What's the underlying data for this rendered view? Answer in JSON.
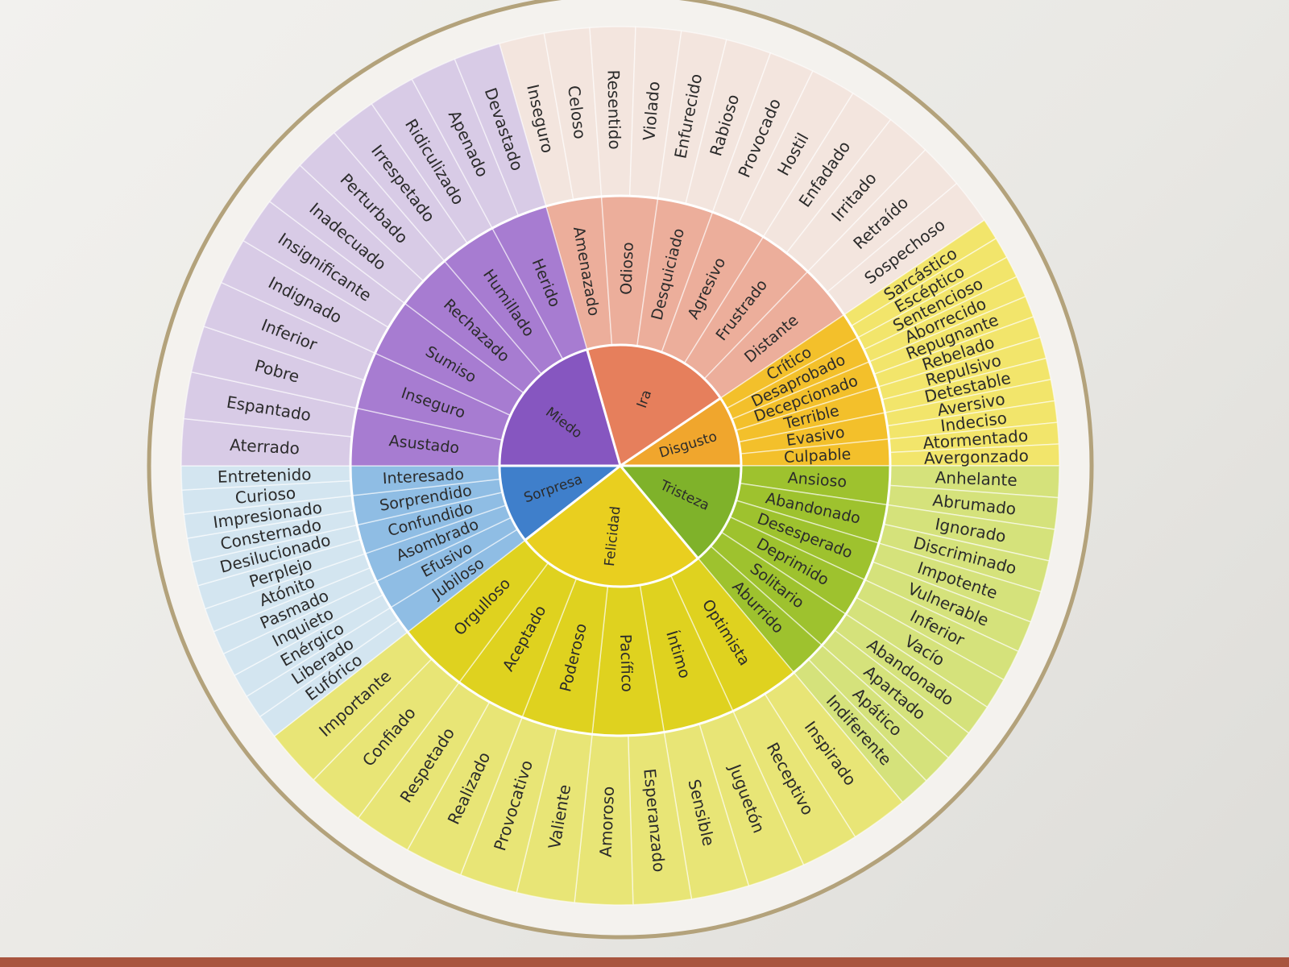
{
  "colors": {
    "background": "#ecebe7",
    "ring": "#b3a27b",
    "miedo": "#8656c0",
    "ira": "#e67f5c",
    "disgusto": "#f0a62d",
    "tristeza": "#7fb22a",
    "felicidad": "#e9cf1f",
    "sorpresa": "#3f7fcb"
  },
  "wheel": [
    {
      "key": "ira",
      "label": "Ira",
      "span": [
        -106,
        -34
      ],
      "colors": {
        "inner": "#e67f5c",
        "mid": "#ecae9b",
        "outer": "#f3e5de"
      },
      "mid": [
        "Amenazado",
        "Odioso",
        "Desquiciado",
        "Agresivo",
        "Frustrado",
        "Distante"
      ],
      "outer": [
        "Inseguro",
        "Celoso",
        "Resentido",
        "Violado",
        "Enfurecido",
        "Rabioso",
        "Provocado",
        "Hostil",
        "Enfadado",
        "Irritado",
        "Retraído",
        "Sospechoso"
      ]
    },
    {
      "key": "disgusto",
      "label": "Disgusto",
      "span": [
        -34,
        0
      ],
      "colors": {
        "inner": "#f0a62d",
        "mid": "#f3c02b",
        "outer": "#f2e56b"
      },
      "mid": [
        "Crítico",
        "Desaprobado",
        "Decepcionado",
        "Terrible",
        "Evasivo",
        "Culpable"
      ],
      "outer": [
        "Sarcástico",
        "Escéptico",
        "Sentencioso",
        "Aborrecido",
        "Repugnante",
        "Rebelado",
        "Repulsivo",
        "Detestable",
        "Aversivo",
        "Indeciso",
        "Atormentado",
        "Avergonzado"
      ]
    },
    {
      "key": "tristeza",
      "label": "Tristeza",
      "span": [
        0,
        50
      ],
      "colors": {
        "inner": "#7fb22a",
        "mid": "#9ec22e",
        "outer": "#d5e27b"
      },
      "mid": [
        "Ansioso",
        "Abandonado",
        "Desesperado",
        "Deprimido",
        "Solitario",
        "Aburrido"
      ],
      "outer": [
        "Anhelante",
        "Abrumado",
        "Ignorado",
        "Discriminado",
        "Impotente",
        "Vulnerable",
        "Inferior",
        "Vacío",
        "Abandonado",
        "Apartado",
        "Apático",
        "Indiferente"
      ]
    },
    {
      "key": "felicidad",
      "label": "Felicidad",
      "span": [
        50,
        142
      ],
      "colors": {
        "inner": "#e9cf1f",
        "mid": "#dfd21f",
        "outer": "#e8e576"
      },
      "mid": [
        "Optimista",
        "Íntimo",
        "Pacífico",
        "Poderoso",
        "Aceptado",
        "Orgulloso"
      ],
      "outer": [
        "Inspirado",
        "Receptivo",
        "Juguetón",
        "Sensible",
        "Esperanzado",
        "Amoroso",
        "Valiente",
        "Provocativo",
        "Realizado",
        "Respetado",
        "Confiado",
        "Importante"
      ]
    },
    {
      "key": "sorpresa",
      "label": "Sorpresa",
      "span": [
        142,
        180
      ],
      "colors": {
        "inner": "#3f7fcb",
        "mid": "#8fbde4",
        "outer": "#d3e5f0"
      },
      "mid": [
        "Jubiloso",
        "Efusivo",
        "Asombrado",
        "Confundido",
        "Sorprendido",
        "Interesado"
      ],
      "outer": [
        "Eufórico",
        "Liberado",
        "Enérgico",
        "Inquieto",
        "Pasmado",
        "Atónito",
        "Perplejo",
        "Desilucionado",
        "Consternado",
        "Impresionado",
        "Curioso",
        "Entretenido"
      ]
    },
    {
      "key": "miedo",
      "label": "Miedo",
      "span": [
        180,
        254
      ],
      "colors": {
        "inner": "#8656c0",
        "mid": "#a77cd1",
        "outer": "#d8cbe6"
      },
      "mid": [
        "Asustado",
        "Inseguro",
        "Sumiso",
        "Rechazado",
        "Humillado",
        "Herido"
      ],
      "outer": [
        "Aterrado",
        "Espantado",
        "Pobre",
        "Inferior",
        "Indignado",
        "Insignificante",
        "Inadecuado",
        "Perturbado",
        "Irrespetado",
        "Ridiculizado",
        "Apenado",
        "Devastado"
      ]
    }
  ]
}
